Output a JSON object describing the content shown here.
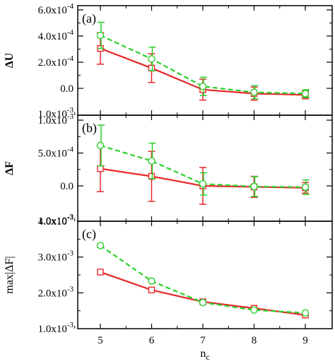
{
  "chart_data": [
    {
      "type": "line",
      "panel_label": "(a)",
      "ylabel": "ΔU",
      "x": [
        5,
        6,
        7,
        8,
        9
      ],
      "xlim": [
        4.5,
        9.2
      ],
      "ylim": [
        -0.0001,
        0.0006
      ],
      "yticks": [
        {
          "value": 0.0006,
          "mantissa": "6.0x10",
          "exp": "-4"
        },
        {
          "value": 0.0004,
          "mantissa": "4.0x10",
          "exp": "-4"
        },
        {
          "value": 0.0002,
          "mantissa": "2.0x10",
          "exp": "-4"
        },
        {
          "value": 0.0,
          "mantissa": "0.0",
          "exp": ""
        }
      ],
      "series": [
        {
          "color": "#e8292b",
          "marker": "square",
          "dash": false,
          "values": [
            0.000305,
            0.000155,
            -1e-05,
            -4e-05,
            -5e-05
          ],
          "errors": [
            0.00012,
            0.00011,
            8e-05,
            5e-05,
            3e-05
          ]
        },
        {
          "color": "#2bd12b",
          "marker": "circle",
          "dash": true,
          "values": [
            0.000405,
            0.000225,
            1.5e-05,
            -3e-05,
            -4e-05
          ],
          "errors": [
            0.0001,
            9e-05,
            7e-05,
            5e-05,
            3e-05
          ]
        }
      ]
    },
    {
      "type": "line",
      "panel_label": "(b)",
      "ylabel": "ΔF",
      "x": [
        5,
        6,
        7,
        8,
        9
      ],
      "xlim": [
        4.5,
        9.2
      ],
      "ylim": [
        -0.0005,
        0.001
      ],
      "yticks": [
        {
          "value": 0.001,
          "mantissa": "1.0x10",
          "exp": "-3"
        },
        {
          "value": 0.0005,
          "mantissa": "5.0x10",
          "exp": "-4"
        },
        {
          "value": 0.0,
          "mantissa": "0.0",
          "exp": ""
        }
      ],
      "series": [
        {
          "color": "#e8292b",
          "marker": "square",
          "dash": false,
          "values": [
            0.000262,
            0.000145,
            0.0,
            -1.5e-05,
            -3e-05
          ],
          "errors": [
            0.00035,
            0.00038,
            0.00028,
            0.00016,
            8e-05
          ]
        },
        {
          "color": "#2bd12b",
          "marker": "circle",
          "dash": true,
          "values": [
            0.000615,
            0.00038,
            3e-05,
            -1e-05,
            -2e-05
          ],
          "errors": [
            0.00031,
            0.00027,
            0.00017,
            0.00015,
            0.00011
          ]
        }
      ]
    },
    {
      "type": "line",
      "panel_label": "(c)",
      "ylabel": "max|ΔF|",
      "xlabel": "n",
      "xlabel_sub": "c",
      "x": [
        5,
        6,
        7,
        8,
        9
      ],
      "xlim": [
        4.5,
        9.2
      ],
      "ylim": [
        0.001,
        0.004
      ],
      "xticks": [
        5,
        6,
        7,
        8,
        9
      ],
      "yticks": [
        {
          "value": 0.004,
          "mantissa": "4.0x10",
          "exp": "-3"
        },
        {
          "value": 0.003,
          "mantissa": "3.0x10",
          "exp": "-3"
        },
        {
          "value": 0.002,
          "mantissa": "2.0x10",
          "exp": "-3"
        },
        {
          "value": 0.001,
          "mantissa": "1.0x10",
          "exp": "-3"
        }
      ],
      "series": [
        {
          "color": "#e8292b",
          "marker": "square",
          "dash": false,
          "values": [
            0.00258,
            0.00208,
            0.00175,
            0.00157,
            0.00138
          ]
        },
        {
          "color": "#2bd12b",
          "marker": "circle",
          "dash": true,
          "values": [
            0.00332,
            0.00233,
            0.00173,
            0.00152,
            0.00144
          ]
        }
      ]
    }
  ],
  "extra_labels": {
    "sci_1e3": "1.0x10",
    "sci_1e3_exp": "-3"
  }
}
